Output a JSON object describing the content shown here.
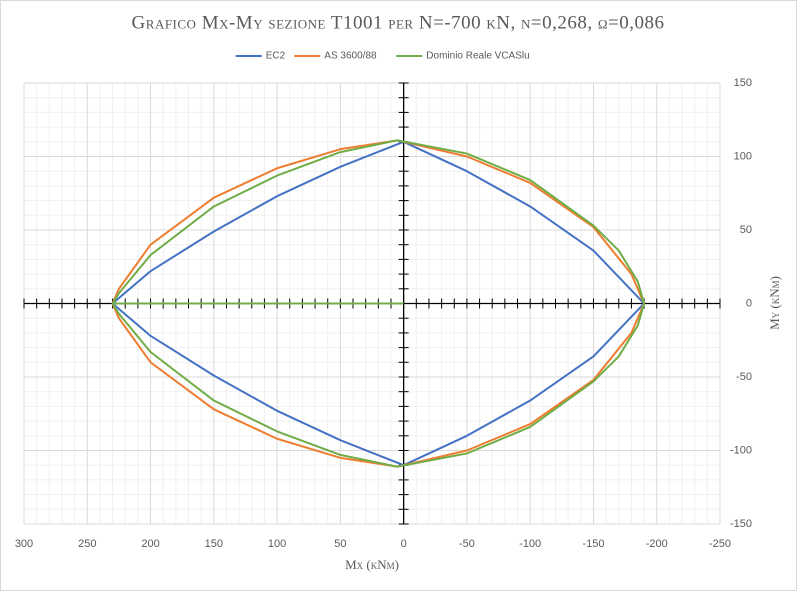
{
  "chart_data": {
    "type": "line",
    "title": "Grafico Mx-My sezione T1001 per N=-700 kN, ν=0,268, ω=0,086",
    "x_label": "Mx (kNm)",
    "y_label": "My (kNm)",
    "xlim": [
      300,
      -250
    ],
    "xticks": [
      300,
      250,
      200,
      150,
      100,
      50,
      0,
      -50,
      -100,
      -150,
      -200,
      -250
    ],
    "ylim": [
      -150,
      150
    ],
    "yticks": [
      -150,
      -100,
      -50,
      0,
      50,
      100,
      150
    ],
    "grid": true,
    "legend": "top",
    "series": [
      {
        "name": "EC2",
        "color": "#4472c4",
        "x": [
          230,
          200,
          150,
          100,
          50,
          0,
          -50,
          -100,
          -150,
          -190,
          -150,
          -100,
          -50,
          0,
          50,
          100,
          150,
          200,
          230
        ],
        "values": [
          0,
          22,
          49,
          73,
          93,
          110,
          90,
          66,
          36,
          0,
          -36,
          -66,
          -90,
          -110,
          -93,
          -73,
          -49,
          -22,
          0
        ]
      },
      {
        "name": "AS 3600/88",
        "color": "#ed7d31",
        "x": [
          230,
          225,
          200,
          150,
          100,
          50,
          5,
          -50,
          -100,
          -150,
          -180,
          -190,
          -180,
          -150,
          -100,
          -50,
          5,
          50,
          100,
          150,
          200,
          225,
          230
        ],
        "values": [
          0,
          10,
          40,
          72,
          92,
          105,
          111,
          100,
          82,
          52,
          20,
          0,
          -20,
          -52,
          -82,
          -100,
          -111,
          -105,
          -92,
          -72,
          -40,
          -10,
          0
        ]
      },
      {
        "name": "Dominio Reale VCASlu",
        "color": "#70ad47",
        "x": [
          0,
          230,
          225,
          200,
          150,
          100,
          50,
          5,
          -50,
          -100,
          -150,
          -170,
          -185,
          -190,
          -185,
          -170,
          -150,
          -100,
          -50,
          5,
          50,
          100,
          150,
          200,
          225,
          230
        ],
        "values": [
          0,
          0,
          7,
          33,
          66,
          87,
          103,
          111,
          102,
          84,
          53,
          36,
          15,
          0,
          -15,
          -36,
          -53,
          -84,
          -102,
          -111,
          -103,
          -87,
          -66,
          -33,
          -7,
          0
        ]
      }
    ]
  }
}
